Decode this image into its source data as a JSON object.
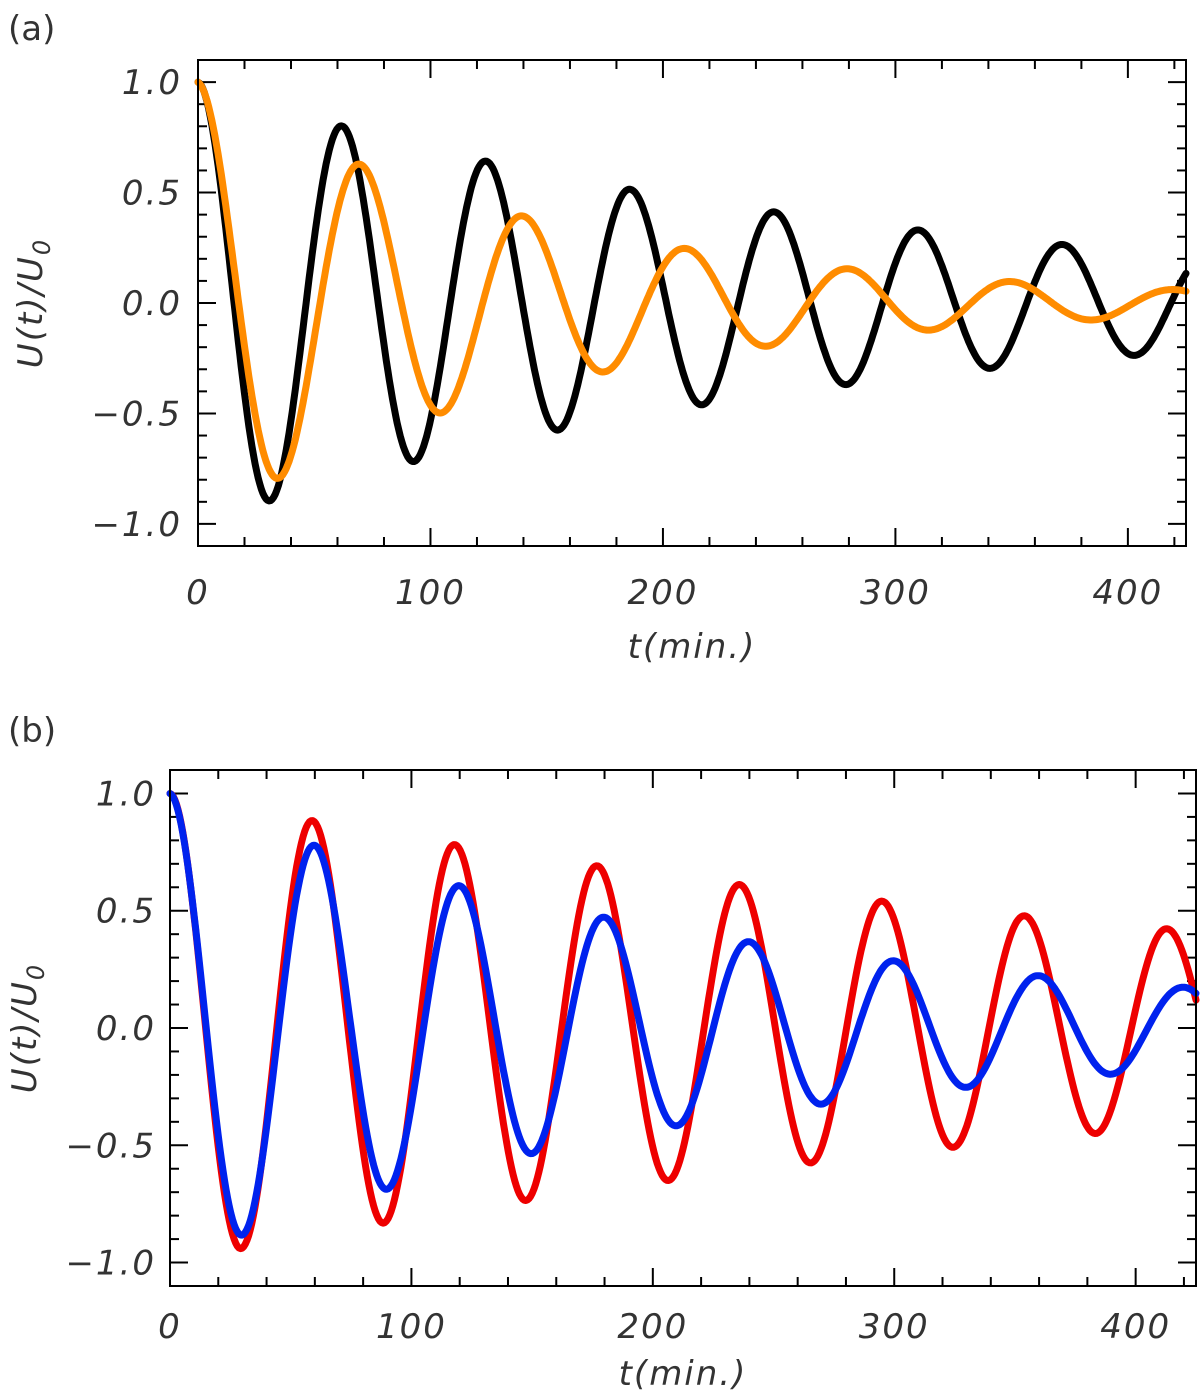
{
  "chart_data": [
    {
      "type": "line",
      "panel_label": "(a)",
      "xlabel": "t(min.)",
      "ylabel": "U(t)/U",
      "ylabel_subscript": "0",
      "xlim": [
        0,
        425
      ],
      "ylim": [
        -1.1,
        1.1
      ],
      "xticks": [
        0,
        100,
        200,
        300,
        400
      ],
      "xtick_labels": [
        "0",
        "100",
        "200",
        "300",
        "400"
      ],
      "yticks": [
        1.0,
        0.5,
        0.0,
        -0.5,
        -1.0
      ],
      "ytick_labels": [
        "1.0",
        "0.5",
        "0.0",
        "−0.5",
        "−1.0"
      ],
      "series": [
        {
          "name": "black",
          "color": "#000000",
          "period": 62,
          "decay": 280,
          "samples": 640
        },
        {
          "name": "orange",
          "color": "#ff8c00",
          "period": 70,
          "decay": 150,
          "samples": 640
        }
      ]
    },
    {
      "type": "line",
      "panel_label": "(b)",
      "xlabel": "t(min.)",
      "ylabel": "U(t)/U",
      "ylabel_subscript": "0",
      "xlim": [
        0,
        425
      ],
      "ylim": [
        -1.1,
        1.1
      ],
      "xticks": [
        0,
        100,
        200,
        300,
        400
      ],
      "xtick_labels": [
        "0",
        "100",
        "200",
        "300",
        "400"
      ],
      "yticks": [
        1.0,
        0.5,
        0.0,
        -0.5,
        -1.0
      ],
      "ytick_labels": [
        "1.0",
        "0.5",
        "0.0",
        "−0.5",
        "−1.0"
      ],
      "series": [
        {
          "name": "red",
          "color": "#ee0000",
          "period": 59,
          "decay": 480,
          "samples": 640
        },
        {
          "name": "blue",
          "color": "#0022ee",
          "period": 60,
          "decay": 240,
          "samples": 640
        }
      ]
    }
  ]
}
